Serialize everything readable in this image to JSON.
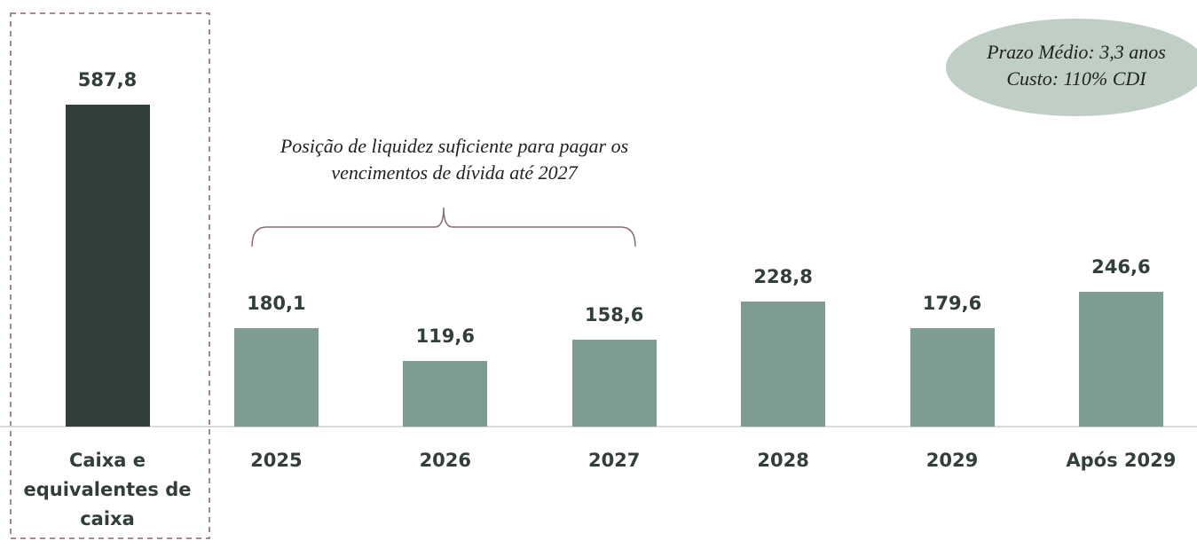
{
  "chart_data": {
    "type": "bar",
    "categories": [
      "Caixa e equivalentes de caixa",
      "2025",
      "2026",
      "2027",
      "2028",
      "2029",
      "Após 2029"
    ],
    "values": [
      587.8,
      180.1,
      119.6,
      158.6,
      228.8,
      179.6,
      246.6
    ],
    "value_labels": [
      "587,8",
      "180,1",
      "119,6",
      "158,6",
      "228,8",
      "179,6",
      "246,6"
    ],
    "colors": [
      "#323e39",
      "#7f9c90",
      "#7f9c90",
      "#7f9c90",
      "#7f9c90",
      "#7f9c90",
      "#7f9c90"
    ],
    "ylim": [
      0,
      600
    ],
    "annotation": {
      "lines": [
        "Posição de liquidez suficiente para pagar os",
        "vencimentos de dívida até 2027"
      ]
    },
    "callout": {
      "lines": [
        "Prazo Médio: 3,3 anos",
        "Custo: 110% CDI"
      ]
    }
  }
}
